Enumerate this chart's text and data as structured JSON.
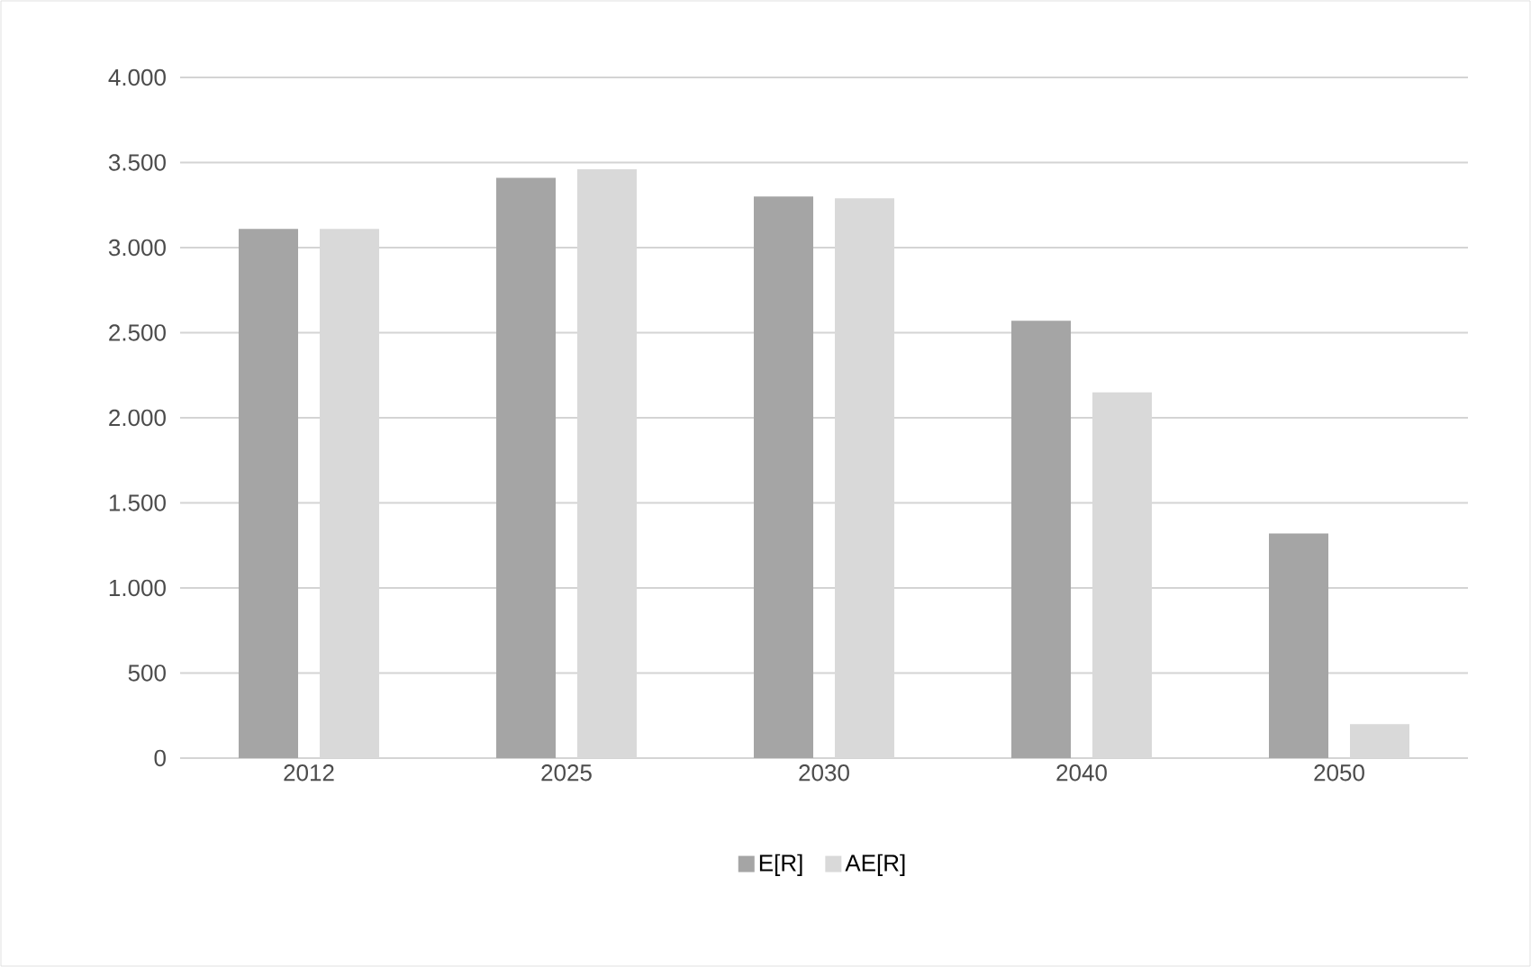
{
  "chart_data": {
    "type": "bar",
    "categories": [
      "2012",
      "2025",
      "2030",
      "2040",
      "2050"
    ],
    "series": [
      {
        "name": "E[R]",
        "color": "#a5a5a5",
        "values": [
          3110,
          3410,
          3300,
          2570,
          1320
        ]
      },
      {
        "name": "AE[R]",
        "color": "#d9d9d9",
        "values": [
          3110,
          3460,
          3290,
          2150,
          200
        ]
      }
    ],
    "ylim": [
      0,
      4000
    ],
    "yticks": [
      {
        "value": 0,
        "label": "0"
      },
      {
        "value": 500,
        "label": "500"
      },
      {
        "value": 1000,
        "label": "1.000"
      },
      {
        "value": 1500,
        "label": "1.500"
      },
      {
        "value": 2000,
        "label": "2.000"
      },
      {
        "value": 2500,
        "label": "2.500"
      },
      {
        "value": 3000,
        "label": "3.000"
      },
      {
        "value": 3500,
        "label": "3.500"
      },
      {
        "value": 4000,
        "label": "4.000"
      }
    ],
    "grid": "y",
    "legend": "bottom"
  }
}
